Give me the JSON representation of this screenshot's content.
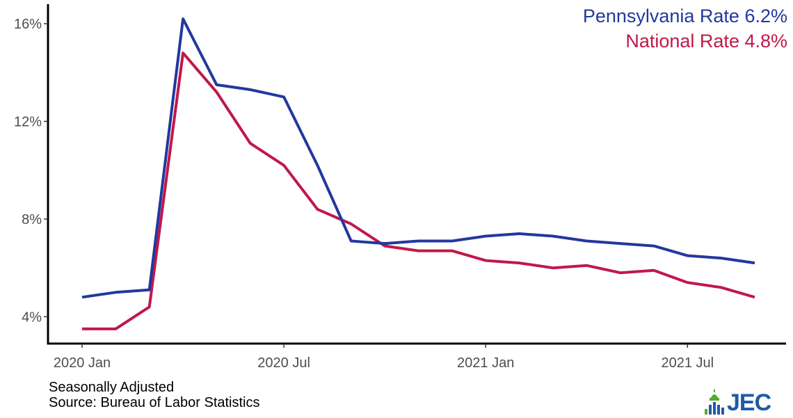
{
  "chart_data": {
    "type": "line",
    "title": "",
    "xlabel": "",
    "ylabel": "",
    "x": [
      "2020-01",
      "2020-02",
      "2020-03",
      "2020-04",
      "2020-05",
      "2020-06",
      "2020-07",
      "2020-08",
      "2020-09",
      "2020-10",
      "2020-11",
      "2020-12",
      "2021-01",
      "2021-02",
      "2021-03",
      "2021-04",
      "2021-05",
      "2021-06",
      "2021-07",
      "2021-08",
      "2021-09"
    ],
    "x_ticks": [
      {
        "x": "2020-01",
        "label": "2020 Jan"
      },
      {
        "x": "2020-07",
        "label": "2020 Jul"
      },
      {
        "x": "2021-01",
        "label": "2021 Jan"
      },
      {
        "x": "2021-07",
        "label": "2021 Jul"
      }
    ],
    "y_ticks": [
      {
        "value": 4,
        "label": "4%"
      },
      {
        "value": 8,
        "label": "8%"
      },
      {
        "value": 12,
        "label": "12%"
      },
      {
        "value": 16,
        "label": "16%"
      }
    ],
    "ylim": [
      2.9,
      16.8
    ],
    "grid": false,
    "legend_position": "top-right",
    "series": [
      {
        "name": "Pennsylvania Rate 6.2%",
        "color": "#22389e",
        "values": [
          4.8,
          5.0,
          5.1,
          16.2,
          13.5,
          13.3,
          13.0,
          10.2,
          7.1,
          7.0,
          7.1,
          7.1,
          7.3,
          7.4,
          7.3,
          7.1,
          7.0,
          6.9,
          6.5,
          6.4,
          6.2
        ]
      },
      {
        "name": "National Rate 4.8%",
        "color": "#c0184a",
        "values": [
          3.5,
          3.5,
          4.4,
          14.8,
          13.2,
          11.1,
          10.2,
          8.4,
          7.8,
          6.9,
          6.7,
          6.7,
          6.3,
          6.2,
          6.0,
          6.1,
          5.8,
          5.9,
          5.4,
          5.2,
          4.8
        ]
      }
    ]
  },
  "notes": {
    "line1": "Seasonally Adjusted",
    "line2": "Source: Bureau of Labor Statistics"
  },
  "logo": {
    "text": "JEC",
    "colors": {
      "green": "#5aa832",
      "blue": "#1f5aa6"
    }
  }
}
